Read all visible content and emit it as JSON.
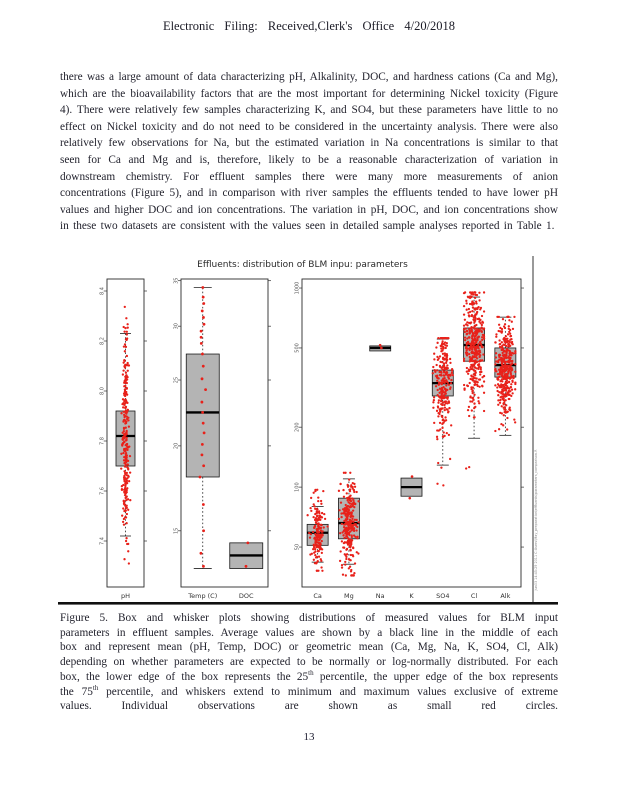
{
  "page": {
    "number": "13"
  },
  "header": {
    "title": "Electronic Filing: Received,Clerk's Office 4/20/2018"
  },
  "body": {
    "paragraph": "there was a large amount of data characterizing pH, Alkalinity, DOC, and hardness cations (Ca and Mg), which are the bioavailability factors that are the most important for determining Nickel toxicity (Figure 4). There were relatively few samples characterizing K, and SO4, but these parameters have little to no effect on Nickel toxicity and do not need to be considered in the uncertainty analysis. There were also relatively few observations for Na, but the estimated variation in Na concentrations is similar to that seen for Ca and Mg and is, therefore, likely to be a reasonable characterization of variation in downstream chemistry. For effluent samples there were many more measurements of anion concentrations (Figure 5), and in comparison with river samples the effluents tended to have lower pH values and higher DOC and ion concentrations. The variation in pH, DOC, and ion concentrations show in these two datasets are consistent with the values seen in detailed sample analyses reported in Table 1."
  },
  "figure": {
    "title": "Effluents: distribution of BLM inpu: parameters",
    "side_note": "Jun03 14:45:29 2011 C:Users\\May_preparation\\effluents\\parameters_comparison.R",
    "colors": {
      "box_fill": "#b4b4b4",
      "box_border": "#1a1a1a",
      "median": "#000000",
      "point": "#e8211a",
      "frame": "#2b2b2b",
      "tick_label": "#555555",
      "rule": "#101010"
    }
  },
  "chart_data": [
    {
      "type": "boxplot",
      "id": "ph",
      "log": false,
      "decimals": 1,
      "ylim": [
        7.216,
        8.448
      ],
      "yticks": [
        7.4,
        7.6,
        7.8,
        8.0,
        8.2,
        8.4
      ],
      "categories": [
        "pH"
      ],
      "series": [
        {
          "name": "pH",
          "whisker_lo": 7.42,
          "q1": 7.7,
          "median": 7.82,
          "q3": 7.92,
          "whisker_hi": 8.23,
          "points": {
            "n": 260,
            "dist": "normal",
            "mean": 7.8,
            "sd": 0.2,
            "min": 7.31,
            "max": 8.4
          },
          "jitter_sd": 1.6,
          "point_r": 1.15,
          "seed": 11
        }
      ]
    },
    {
      "type": "boxplot",
      "id": "temp-doc",
      "log": true,
      "decimals": 0,
      "ylim": [
        12.4,
        35.2
      ],
      "yticks": [
        15,
        20,
        25,
        30,
        35
      ],
      "categories": [
        "Temp (C)",
        "DOC"
      ],
      "series": [
        {
          "name": "Temp (C)",
          "whisker_lo": 13.2,
          "q1": 18.0,
          "median": 22.4,
          "q3": 27.3,
          "whisker_hi": 34.2,
          "points": {
            "values": [
              34.2,
              33.1,
              32.4,
              31.6,
              30.9,
              30.2,
              29.5,
              28.9,
              28.3,
              27.3,
              26.2,
              25.1,
              24.2,
              23.2,
              22.4,
              21.6,
              20.9,
              20.1,
              19.4,
              18.7,
              18.0,
              16.4,
              15.0,
              13.9,
              13.3
            ]
          },
          "jitter_sd": 0.9,
          "point_r": 1.4,
          "seed": 22
        },
        {
          "name": "DOC",
          "q1": 13.2,
          "median": 13.8,
          "q3": 14.4,
          "points": {
            "values": [
              14.4,
              13.3
            ]
          },
          "jitter_sd": 0.8,
          "point_r": 1.4,
          "seed": 23
        }
      ]
    },
    {
      "type": "boxplot",
      "id": "ions",
      "log": true,
      "decimals": 0,
      "ylim": [
        31.5,
        1110
      ],
      "yticks": [
        50,
        100,
        200,
        500,
        1000
      ],
      "categories": [
        "Ca",
        "Mg",
        "Na",
        "K",
        "SO4",
        "Cl",
        "Alk"
      ],
      "series": [
        {
          "name": "Ca",
          "whisker_lo": 42,
          "q1": 51,
          "median": 59,
          "q3": 65,
          "whisker_hi": 80,
          "points": {
            "n": 170,
            "dist": "lognormal",
            "mean": 1.77,
            "sd": 0.085,
            "min": 38,
            "max": 97
          },
          "jitter_sd": 3.2,
          "point_r": 1.15,
          "seed": 31
        },
        {
          "name": "Mg",
          "whisker_lo": 41,
          "q1": 55,
          "median": 66,
          "q3": 88,
          "whisker_hi": 110,
          "points": {
            "n": 260,
            "dist": "lognormal",
            "mean": 1.81,
            "sd": 0.115,
            "min": 36,
            "max": 118
          },
          "jitter_sd": 3.8,
          "point_r": 1.15,
          "seed": 32
        },
        {
          "name": "Na",
          "q1": 483,
          "median": 500,
          "q3": 512,
          "points": {
            "values": [
              516,
              500
            ]
          },
          "jitter_sd": 1.2,
          "point_r": 1.3,
          "seed": 33
        },
        {
          "name": "K",
          "q1": 90,
          "median": 100,
          "q3": 111,
          "points": {
            "values": [
              113,
              88
            ]
          },
          "jitter_sd": 1.2,
          "point_r": 1.3,
          "seed": 34
        },
        {
          "name": "SO4",
          "whisker_lo": 129,
          "q1": 287,
          "median": 333,
          "q3": 387,
          "whisker_hi": 554,
          "points": {
            "n": 260,
            "dist": "lognormal",
            "mean": 2.52,
            "sd": 0.135,
            "min": 125,
            "max": 560
          },
          "outliers": [
            102,
            104
          ],
          "jitter_sd": 4.2,
          "point_r": 1.15,
          "seed": 35
        },
        {
          "name": "Cl",
          "whisker_lo": 176,
          "q1": 429,
          "median": 517,
          "q3": 630,
          "whisker_hi": 901,
          "points": {
            "n": 380,
            "dist": "lognormal",
            "mean": 2.715,
            "sd": 0.145,
            "min": 170,
            "max": 950
          },
          "outliers": [
            126,
            124
          ],
          "jitter_sd": 4.8,
          "point_r": 1.15,
          "seed": 36
        },
        {
          "name": "Alk",
          "whisker_lo": 182,
          "q1": 357,
          "median": 410,
          "q3": 500,
          "whisker_hi": 714,
          "points": {
            "n": 380,
            "dist": "lognormal",
            "mean": 2.6,
            "sd": 0.115,
            "min": 178,
            "max": 716
          },
          "jitter_sd": 4.8,
          "point_r": 1.15,
          "seed": 37
        }
      ]
    }
  ],
  "caption": {
    "segments": [
      {
        "text": "Figure 5. Box and whisker plots showing distributions of measured values for BLM input parameters in effluent samples. Average values are shown by a black line in the middle of each box and represent mean (pH, Temp, DOC) or geometric mean (Ca, Mg, Na, K, SO4, Cl, Alk) depending on whether parameters are expected to be normally or log-normally distributed. For each box, the lower edge of the box represents the 25",
        "sup": false
      },
      {
        "text": "th",
        "sup": true
      },
      {
        "text": " percentile, the upper edge of the box represents the 75",
        "sup": false
      },
      {
        "text": "th",
        "sup": true
      },
      {
        "text": " percentile, and whiskers extend to minimum and maximum values exclusive of extreme values. Individual observations are shown as small red circles.",
        "sup": false
      }
    ]
  }
}
